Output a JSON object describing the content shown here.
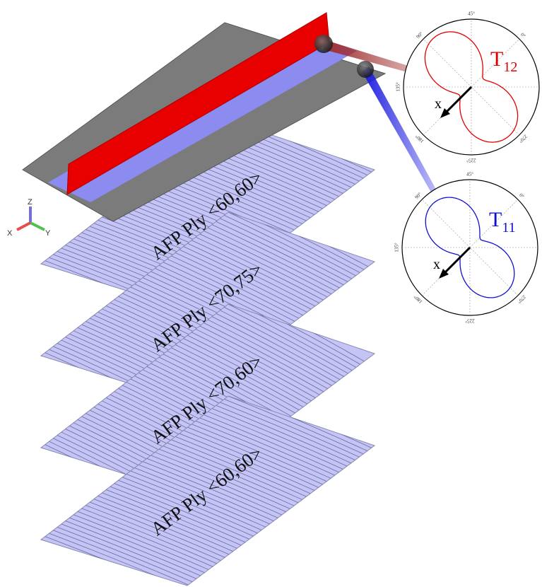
{
  "plies": [
    {
      "label": "AFP Ply <60,60>"
    },
    {
      "label": "AFP Ply <70,75>"
    },
    {
      "label": "AFP Ply <70,60>"
    },
    {
      "label": "AFP Ply <60,60>"
    }
  ],
  "polar_plots": [
    {
      "symbol": "T",
      "subscript": "12",
      "color": "#e00000",
      "arrow_label": "x",
      "angle_labels": [
        "45°",
        "0°",
        "90°",
        "135°",
        "180°",
        "225°",
        "270°"
      ]
    },
    {
      "symbol": "T",
      "subscript": "11",
      "color": "#1010d0",
      "arrow_label": "x",
      "angle_labels": [
        "45°",
        "0°",
        "90°",
        "135°",
        "180°",
        "225°",
        "270°"
      ]
    }
  ],
  "axis_triad": {
    "z": "Z",
    "x": "X",
    "y": "Y"
  }
}
